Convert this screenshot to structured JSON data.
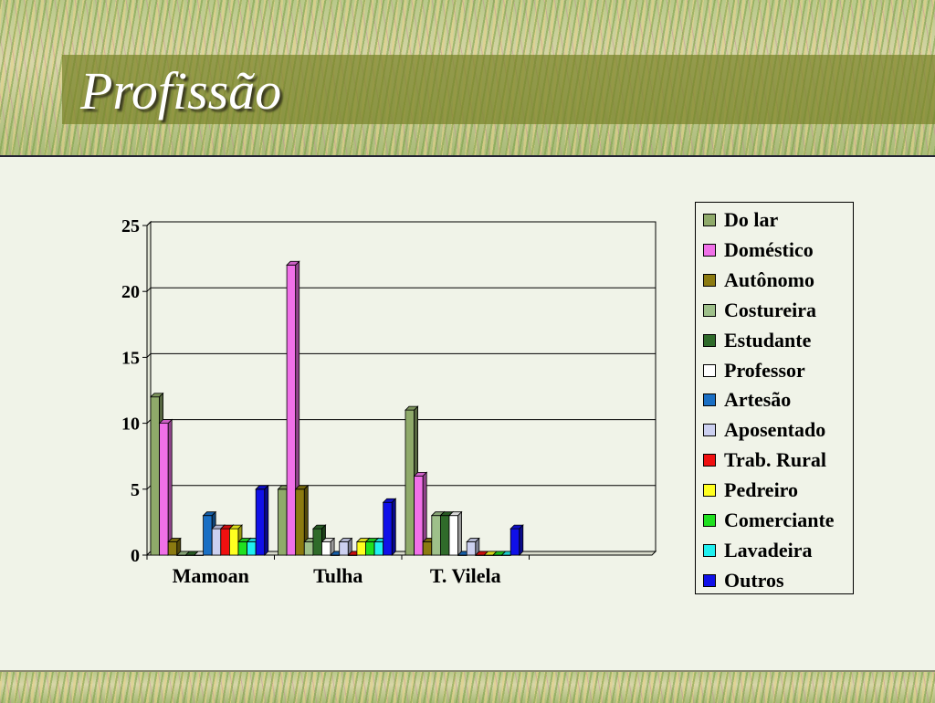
{
  "slide": {
    "title": "Profissão"
  },
  "chart_data": {
    "type": "bar",
    "categories": [
      "Mamoan",
      "Tulha",
      "T. Vilela"
    ],
    "ylim": [
      0,
      25
    ],
    "yticks": [
      "0",
      "5",
      "10",
      "15",
      "20",
      "25"
    ],
    "grid": true,
    "legend_position": "right",
    "series": [
      {
        "name": "Do lar",
        "color": "#8faa6a",
        "values": [
          12,
          5,
          11
        ]
      },
      {
        "name": "Doméstico",
        "color": "#f070e8",
        "values": [
          10,
          22,
          6
        ]
      },
      {
        "name": "Autônomo",
        "color": "#8b7a10",
        "values": [
          1,
          5,
          1
        ]
      },
      {
        "name": "Costureira",
        "color": "#9ec08a",
        "values": [
          0,
          1,
          3
        ]
      },
      {
        "name": "Estudante",
        "color": "#2f6b2a",
        "values": [
          0,
          2,
          3
        ]
      },
      {
        "name": "Professor",
        "color": "#ffffff",
        "values": [
          0,
          1,
          3
        ]
      },
      {
        "name": "Artesão",
        "color": "#1a6fc4",
        "values": [
          3,
          0,
          0
        ]
      },
      {
        "name": "Aposentado",
        "color": "#ccd0f0",
        "values": [
          2,
          1,
          1
        ]
      },
      {
        "name": "Trab. Rural",
        "color": "#f01010",
        "values": [
          2,
          0,
          0
        ]
      },
      {
        "name": "Pedreiro",
        "color": "#ffff20",
        "values": [
          2,
          1,
          0
        ]
      },
      {
        "name": "Comerciante",
        "color": "#20e020",
        "values": [
          1,
          1,
          0
        ]
      },
      {
        "name": "Lavadeira",
        "color": "#20f0f0",
        "values": [
          1,
          1,
          0
        ]
      },
      {
        "name": "Outros",
        "color": "#1010e8",
        "values": [
          5,
          4,
          2
        ]
      }
    ]
  }
}
